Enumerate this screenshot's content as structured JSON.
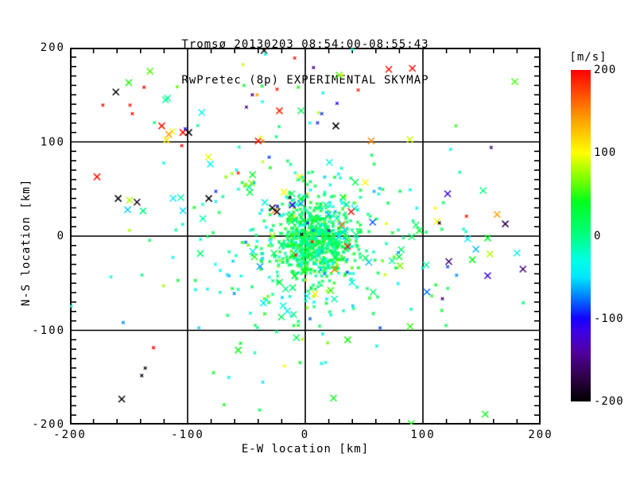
{
  "title": "Tromsø 20130203 08:54:00-08:55:43",
  "subtitle": "RwPretec (8p) EXPERIMENTAL SKYMAP",
  "chart_data": {
    "type": "scatter",
    "marker": "x",
    "title": "Tromsø 20130203 08:54:00-08:55:43",
    "subtitle": "RwPretec (8p) EXPERIMENTAL SKYMAP",
    "xlabel": "E-W location [km]",
    "ylabel": "N-S location [km]",
    "xlim": [
      -200,
      200
    ],
    "ylim": [
      -200,
      200
    ],
    "x_major_ticks": [
      -200,
      -100,
      0,
      100,
      200
    ],
    "y_major_ticks": [
      -200,
      -100,
      0,
      100,
      200
    ],
    "x_minor_step": 20,
    "y_minor_step": 10,
    "grid": true,
    "grid_color": "#000000",
    "background": "#ffffff",
    "colorbar": {
      "label": "[m/s]",
      "min": -200,
      "max": 200,
      "ticks": [
        200,
        100,
        0,
        -100,
        -200
      ],
      "stops": [
        {
          "v": -200,
          "c": "#000000"
        },
        {
          "v": -170,
          "c": "#30004A"
        },
        {
          "v": -140,
          "c": "#5000A0"
        },
        {
          "v": -115,
          "c": "#3C00E6"
        },
        {
          "v": -100,
          "c": "#1400FF"
        },
        {
          "v": -75,
          "c": "#0078FF"
        },
        {
          "v": -50,
          "c": "#00E6FF"
        },
        {
          "v": -30,
          "c": "#00FFE6"
        },
        {
          "v": 0,
          "c": "#00FF82"
        },
        {
          "v": 40,
          "c": "#00FF1E"
        },
        {
          "v": 70,
          "c": "#82FF00"
        },
        {
          "v": 100,
          "c": "#FFFF00"
        },
        {
          "v": 140,
          "c": "#FFA000"
        },
        {
          "v": 170,
          "c": "#FF5000"
        },
        {
          "v": 200,
          "c": "#FF0000"
        }
      ]
    },
    "clusters": [
      {
        "count": 560,
        "cx": 8,
        "cy": -3,
        "sx": 17,
        "sy": 19,
        "vMean": 14,
        "vSd": 24,
        "bigFrac": 0.04
      },
      {
        "count": 290,
        "cx": 4,
        "cy": -12,
        "sx": 40,
        "sy": 48,
        "vMean": 4,
        "vSd": 38,
        "bigFrac": 0.1
      },
      {
        "count": 120,
        "cx": 0,
        "cy": 18,
        "sx": 75,
        "sy": 70,
        "vMean": 0,
        "vSd": 60,
        "bigFrac": 0.4
      }
    ],
    "outlier_points": [
      [
        -132,
        175,
        60,
        1
      ],
      [
        -150,
        163,
        48,
        1
      ],
      [
        -161,
        153,
        -200,
        1
      ],
      [
        -137,
        158,
        196,
        0
      ],
      [
        -172,
        139,
        196,
        0
      ],
      [
        -149,
        139,
        192,
        0
      ],
      [
        -147,
        130,
        196,
        0
      ],
      [
        -105,
        96,
        194,
        0
      ],
      [
        -122,
        117,
        192,
        1
      ],
      [
        -113,
        111,
        104,
        1
      ],
      [
        -116,
        108,
        142,
        1
      ],
      [
        -118,
        102,
        108,
        1
      ],
      [
        -104,
        110,
        196,
        1
      ],
      [
        -99,
        110,
        -200,
        1
      ],
      [
        -159,
        40,
        -200,
        1
      ],
      [
        -151,
        28,
        -55,
        1
      ],
      [
        -143,
        36,
        -188,
        1
      ],
      [
        -177,
        63,
        194,
        1
      ],
      [
        -102,
        114,
        -108,
        0
      ],
      [
        -104,
        27,
        -52,
        1
      ],
      [
        -82,
        40,
        -196,
        1
      ],
      [
        -57,
        67,
        190,
        0
      ],
      [
        -50,
        137,
        -152,
        0
      ],
      [
        -156,
        -173,
        -200,
        1
      ],
      [
        -136,
        -140,
        -195,
        0
      ],
      [
        -139,
        -148,
        -190,
        0
      ],
      [
        -78,
        -145,
        40,
        0
      ],
      [
        -65,
        -150,
        -35,
        0
      ],
      [
        -69,
        -179,
        45,
        0
      ],
      [
        -57,
        -121,
        44,
        1
      ],
      [
        -36,
        -155,
        -50,
        0
      ],
      [
        24,
        -172,
        42,
        1
      ],
      [
        153,
        -189,
        40,
        1
      ],
      [
        36,
        -110,
        46,
        1
      ],
      [
        89,
        -96,
        52,
        1
      ],
      [
        116,
        -79,
        38,
        0
      ],
      [
        90,
        -199,
        46,
        1
      ],
      [
        -35,
        197,
        -200,
        1
      ],
      [
        -34,
        193,
        -25,
        0
      ],
      [
        -53,
        182,
        85,
        0
      ],
      [
        -9,
        189,
        194,
        0
      ],
      [
        7,
        179,
        -160,
        0
      ],
      [
        31,
        171,
        102,
        0
      ],
      [
        27,
        141,
        -106,
        0
      ],
      [
        -22,
        133,
        186,
        1
      ],
      [
        -6,
        158,
        46,
        0
      ],
      [
        -52,
        160,
        35,
        0
      ],
      [
        -24,
        156,
        194,
        0
      ],
      [
        -45,
        150,
        -150,
        0
      ],
      [
        -41,
        150,
        140,
        0
      ],
      [
        15,
        152,
        -40,
        0
      ],
      [
        45,
        155,
        192,
        0
      ],
      [
        26,
        117,
        -200,
        1
      ],
      [
        -40,
        101,
        195,
        1
      ],
      [
        -38,
        105,
        100,
        0
      ],
      [
        -36,
        101,
        150,
        0
      ],
      [
        14,
        130,
        -90,
        0
      ],
      [
        40,
        198,
        -25,
        0
      ],
      [
        71,
        177,
        194,
        1
      ],
      [
        91,
        178,
        196,
        1
      ],
      [
        178,
        164,
        56,
        1
      ],
      [
        128,
        117,
        50,
        0
      ],
      [
        56,
        101,
        150,
        1
      ],
      [
        51,
        57,
        102,
        1
      ],
      [
        158,
        94,
        -162,
        0
      ],
      [
        121,
        45,
        -118,
        1
      ],
      [
        137,
        21,
        196,
        0
      ],
      [
        114,
        14,
        -200,
        0
      ],
      [
        170,
        13,
        -166,
        1
      ],
      [
        97,
        6,
        32,
        1
      ],
      [
        138,
        -3,
        -46,
        1
      ],
      [
        155,
        -2,
        36,
        1
      ],
      [
        145,
        -14,
        -60,
        1
      ],
      [
        157,
        -19,
        82,
        1
      ],
      [
        180,
        -18,
        -42,
        1
      ],
      [
        122,
        -27,
        -158,
        1
      ],
      [
        142,
        -25,
        42,
        1
      ],
      [
        185,
        -35,
        -154,
        1
      ],
      [
        155,
        -42,
        -112,
        1
      ],
      [
        163,
        23,
        142,
        1
      ],
      [
        -26,
        27,
        146,
        1
      ],
      [
        -28,
        30,
        -192,
        1
      ],
      [
        -24,
        26,
        -184,
        1
      ],
      [
        -11,
        33,
        -112,
        1
      ],
      [
        36,
        -11,
        194,
        1
      ],
      [
        39,
        26,
        192,
        1
      ],
      [
        31,
        12,
        160,
        1
      ],
      [
        -9,
        21,
        110,
        0
      ],
      [
        -13,
        41,
        -192,
        0
      ],
      [
        -3,
        2,
        -196,
        0
      ],
      [
        6,
        -6,
        196,
        0
      ],
      [
        2,
        14,
        -102,
        0
      ],
      [
        14,
        -16,
        -58,
        0
      ],
      [
        -8,
        -20,
        196,
        0
      ],
      [
        20,
        6,
        -148,
        0
      ]
    ]
  }
}
